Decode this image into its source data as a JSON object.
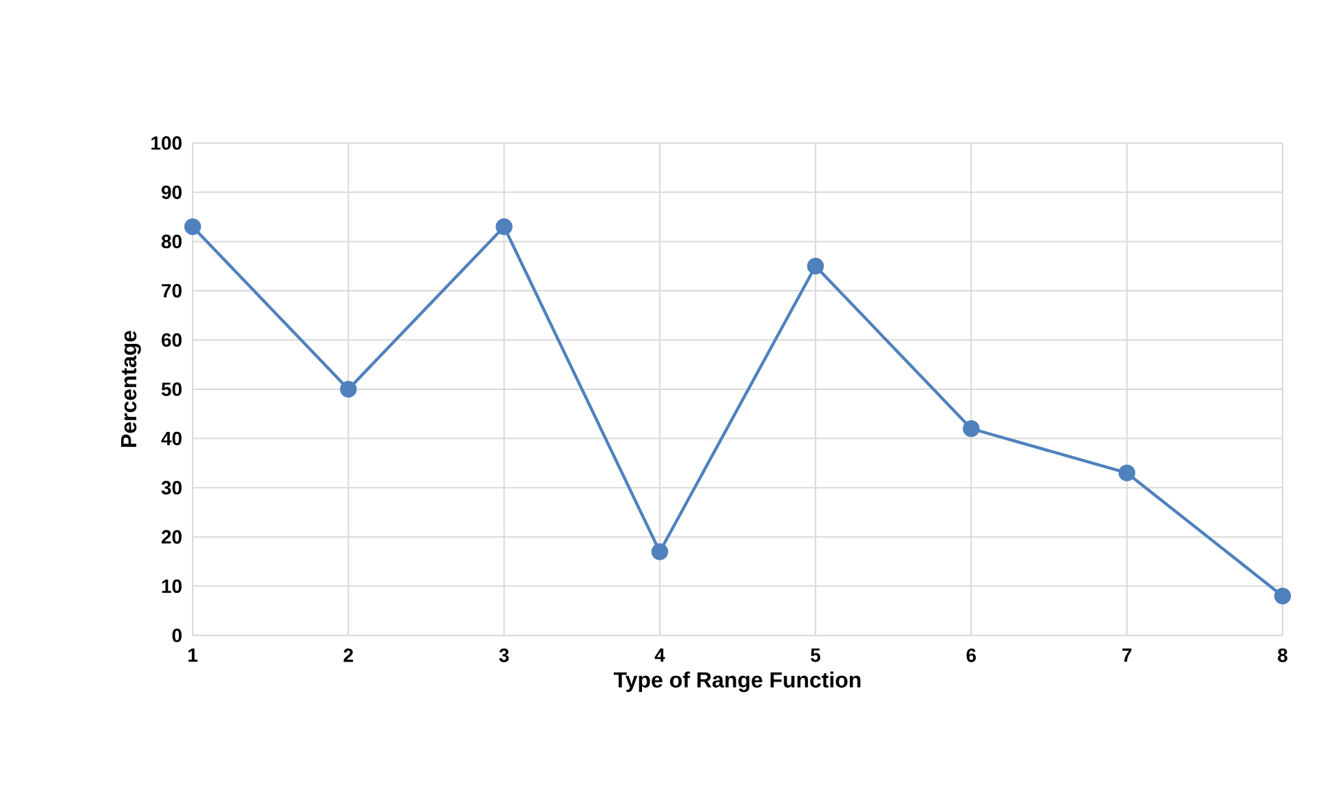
{
  "chart_data": {
    "type": "line",
    "xlabel": "Type of Range Function",
    "ylabel": "Percentage",
    "x": [
      1,
      2,
      3,
      4,
      5,
      6,
      7,
      8
    ],
    "series": [
      {
        "color": "#4f81bd",
        "values": [
          83,
          50,
          83,
          17,
          75,
          42,
          33,
          8
        ]
      }
    ],
    "xlim": [
      1,
      8
    ],
    "xticks": [
      1,
      2,
      3,
      4,
      5,
      6,
      7,
      8
    ],
    "ylim": [
      0,
      100
    ],
    "yticks": [
      0,
      10,
      20,
      30,
      40,
      50,
      60,
      70,
      80,
      90,
      100
    ],
    "grid": true,
    "marker": "circle",
    "line_style": "solid"
  }
}
